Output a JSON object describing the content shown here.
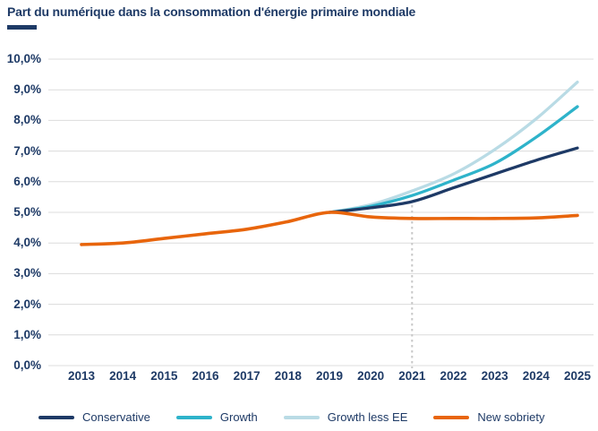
{
  "title": "Part du numérique dans la consommation d'énergie primaire mondiale",
  "colors": {
    "title": "#1e3a66",
    "axis_labels": "#1e3a66",
    "gridline": "#dcdcdc",
    "vline": "#c8c8c8",
    "background": "#ffffff"
  },
  "chart_data": {
    "type": "line",
    "title": "Part du numérique dans la consommation d'énergie primaire mondiale",
    "xlabel": "",
    "ylabel": "",
    "ylim": [
      0,
      10
    ],
    "grid": true,
    "legend_position": "bottom",
    "x_ticks": [
      2013,
      2014,
      2015,
      2016,
      2017,
      2018,
      2019,
      2020,
      2021,
      2022,
      2023,
      2024,
      2025
    ],
    "x_tick_labels": [
      "2013",
      "2014",
      "2015",
      "2016",
      "2017",
      "2018",
      "2019",
      "2020",
      "2021",
      "2022",
      "2023",
      "2024",
      "2025"
    ],
    "y_ticks_pct": [
      0,
      1,
      2,
      3,
      4,
      5,
      6,
      7,
      8,
      9,
      10
    ],
    "y_tick_labels": [
      "0,0%",
      "1,0%",
      "2,0%",
      "3,0%",
      "4,0%",
      "5,0%",
      "6,0%",
      "7,0%",
      "8,0%",
      "9,0%",
      "10,0%"
    ],
    "vline": {
      "x": 2021,
      "style": "dotted",
      "color": "#c8c8c8",
      "ref_series": "Conservative"
    },
    "series": [
      {
        "name": "Conservative",
        "color": "#1e3a66",
        "x": [
          2019,
          2020,
          2021,
          2022,
          2023,
          2024,
          2025
        ],
        "values": [
          5.0,
          5.15,
          5.35,
          5.8,
          6.25,
          6.7,
          7.1
        ]
      },
      {
        "name": "Growth",
        "color": "#2eb3ca",
        "x": [
          2019,
          2020,
          2021,
          2022,
          2023,
          2024,
          2025
        ],
        "values": [
          5.0,
          5.2,
          5.55,
          6.05,
          6.6,
          7.45,
          8.45
        ]
      },
      {
        "name": "Growth less EE",
        "color": "#b9dbe5",
        "x": [
          2019,
          2020,
          2021,
          2022,
          2023,
          2024,
          2025
        ],
        "values": [
          5.0,
          5.25,
          5.7,
          6.25,
          7.05,
          8.05,
          9.25
        ]
      },
      {
        "name": "New sobriety",
        "color": "#e8650c",
        "x": [
          2013,
          2014,
          2015,
          2016,
          2017,
          2018,
          2019,
          2020,
          2021,
          2022,
          2023,
          2024,
          2025
        ],
        "values": [
          3.95,
          4.0,
          4.15,
          4.3,
          4.45,
          4.7,
          5.0,
          4.85,
          4.8,
          4.8,
          4.8,
          4.82,
          4.9
        ]
      }
    ]
  }
}
